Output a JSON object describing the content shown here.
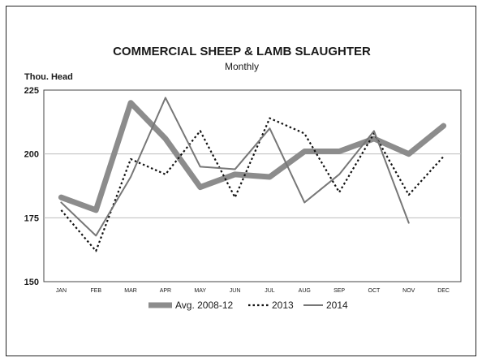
{
  "chart_data": {
    "type": "line",
    "title": "COMMERCIAL SHEEP & LAMB SLAUGHTER",
    "subtitle": "Monthly",
    "ylabel": "Thou. Head",
    "xlabel": "",
    "ylim": [
      150,
      225
    ],
    "yticks": [
      150,
      175,
      200,
      225
    ],
    "categories": [
      "JAN",
      "FEB",
      "MAR",
      "APR",
      "MAY",
      "JUN",
      "JUL",
      "AUG",
      "SEP",
      "OCT",
      "NOV",
      "DEC"
    ],
    "grid": "horizontal",
    "legend_position": "bottom",
    "series": [
      {
        "name": "Avg. 2008-12",
        "style": "thick-solid",
        "color": "#8c8c8c",
        "values": [
          183,
          178,
          220,
          206,
          187,
          192,
          191,
          201,
          201,
          206,
          200,
          211
        ]
      },
      {
        "name": "2013",
        "style": "dotted",
        "color": "#111111",
        "values": [
          178,
          162,
          198,
          192,
          209,
          183,
          214,
          208,
          185,
          208,
          184,
          199
        ]
      },
      {
        "name": "2014",
        "style": "thin-solid",
        "color": "#777777",
        "values": [
          181,
          168,
          191,
          222,
          195,
          194,
          210,
          181,
          192,
          209,
          173,
          null
        ]
      }
    ]
  }
}
